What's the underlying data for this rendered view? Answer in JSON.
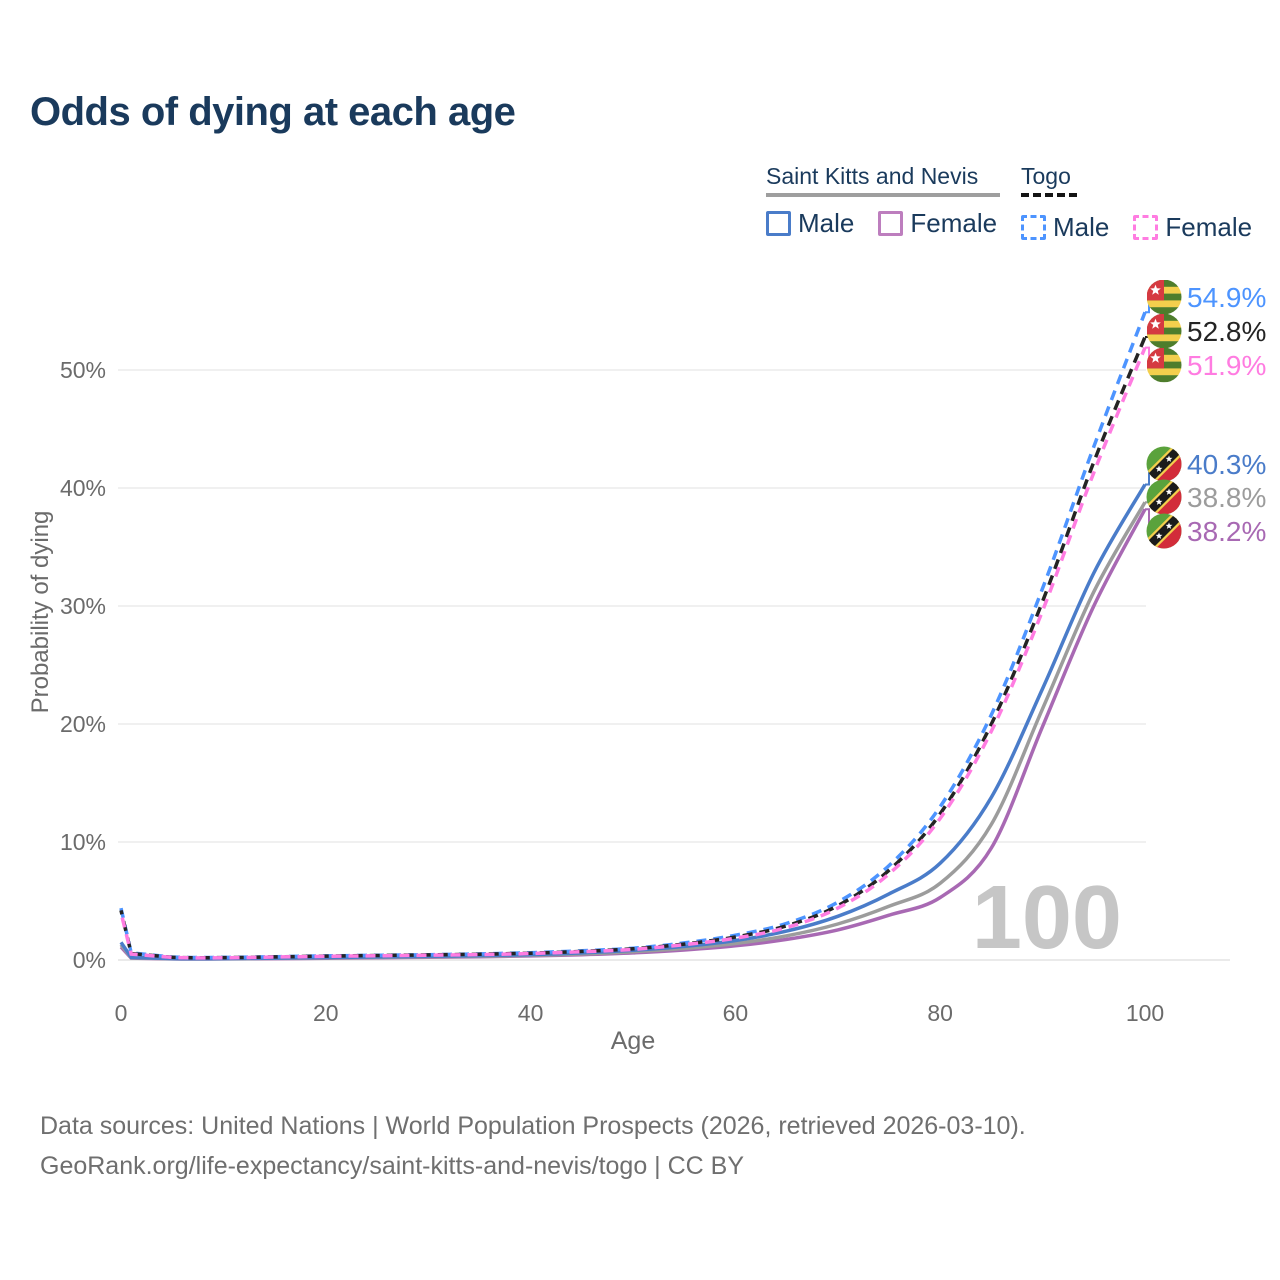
{
  "title": "Odds of dying at each age",
  "legend": {
    "groups": [
      {
        "name": "Saint Kitts and Nevis",
        "underline_style": "solid",
        "underline_color": "#9e9e9e",
        "items": [
          {
            "label": "Male",
            "color": "#4a7cc9",
            "line_style": "solid"
          },
          {
            "label": "Female",
            "color": "#bd7ebe",
            "line_style": "solid"
          }
        ]
      },
      {
        "name": "Togo",
        "underline_style": "dashed",
        "underline_color": "#141414",
        "items": [
          {
            "label": "Male",
            "color": "#4d94ff",
            "line_style": "dashed"
          },
          {
            "label": "Female",
            "color": "#ff7ce1",
            "line_style": "dashed"
          }
        ]
      }
    ]
  },
  "chart_data": {
    "type": "line",
    "title": "Odds of dying at each age",
    "xlabel": "Age",
    "ylabel": "Probability of dying",
    "xlim": [
      0,
      100
    ],
    "ylim": [
      0,
      57
    ],
    "grid": "horizontal",
    "watermark": "100",
    "x_axis": {
      "label": "Age",
      "tick_values": [
        0,
        20,
        40,
        60,
        80,
        100
      ]
    },
    "y_axis": {
      "label": "Probability of dying",
      "tick_values": [
        0,
        10,
        20,
        30,
        40,
        50
      ],
      "tick_labels": [
        "0%",
        "10%",
        "20%",
        "30%",
        "40%",
        "50%"
      ]
    },
    "ages": [
      0,
      1,
      5,
      10,
      15,
      20,
      25,
      30,
      35,
      40,
      45,
      50,
      55,
      60,
      65,
      70,
      75,
      80,
      85,
      90,
      95,
      100
    ],
    "series": [
      {
        "id": "togo-male",
        "country": "Togo",
        "sex": "Male",
        "flag": "togo",
        "color": "#4d94ff",
        "line_style": "dashed",
        "end_value": 54.9,
        "end_label": "54.9%",
        "values": [
          4.4,
          0.6,
          0.25,
          0.22,
          0.28,
          0.35,
          0.4,
          0.45,
          0.52,
          0.62,
          0.78,
          1.0,
          1.45,
          2.1,
          3.1,
          4.9,
          8.0,
          13.0,
          20.8,
          31.5,
          43.5,
          54.9
        ]
      },
      {
        "id": "togo-combined",
        "country": "Togo",
        "sex": "Combined",
        "flag": "togo",
        "color": "#242424",
        "line_style": "dashed",
        "end_value": 52.8,
        "end_label": "52.8%",
        "values": [
          4.2,
          0.55,
          0.23,
          0.2,
          0.26,
          0.33,
          0.38,
          0.43,
          0.49,
          0.58,
          0.73,
          0.95,
          1.35,
          1.95,
          2.9,
          4.6,
          7.6,
          12.4,
          20.0,
          30.4,
          42.2,
          52.8
        ]
      },
      {
        "id": "togo-female",
        "country": "Togo",
        "sex": "Female",
        "flag": "togo",
        "color": "#ff7ce1",
        "line_style": "dashed",
        "end_value": 51.9,
        "end_label": "51.9%",
        "values": [
          4.0,
          0.5,
          0.22,
          0.19,
          0.25,
          0.31,
          0.36,
          0.41,
          0.46,
          0.55,
          0.7,
          0.9,
          1.3,
          1.85,
          2.75,
          4.4,
          7.3,
          12.0,
          19.4,
          29.6,
          41.3,
          51.9
        ]
      },
      {
        "id": "skn-male",
        "country": "Saint Kitts and Nevis",
        "sex": "Male",
        "flag": "skn",
        "color": "#4a7cc9",
        "line_style": "solid",
        "end_value": 40.3,
        "end_label": "40.3%",
        "values": [
          1.5,
          0.22,
          0.12,
          0.12,
          0.16,
          0.21,
          0.26,
          0.31,
          0.37,
          0.46,
          0.6,
          0.82,
          1.15,
          1.65,
          2.45,
          3.7,
          5.6,
          8.2,
          13.8,
          23.0,
          32.8,
          40.3
        ]
      },
      {
        "id": "skn-combined",
        "country": "Saint Kitts and Nevis",
        "sex": "Combined",
        "flag": "skn",
        "color": "#9c9c9c",
        "line_style": "solid",
        "end_value": 38.8,
        "end_label": "38.8%",
        "values": [
          1.3,
          0.19,
          0.1,
          0.1,
          0.14,
          0.18,
          0.22,
          0.27,
          0.32,
          0.4,
          0.52,
          0.7,
          0.98,
          1.4,
          2.05,
          3.05,
          4.55,
          6.5,
          11.5,
          21.3,
          31.2,
          38.8
        ]
      },
      {
        "id": "skn-female",
        "country": "Saint Kitts and Nevis",
        "sex": "Female",
        "flag": "skn",
        "color": "#a869b3",
        "line_style": "solid",
        "end_value": 38.2,
        "end_label": "38.2%",
        "values": [
          1.1,
          0.16,
          0.09,
          0.09,
          0.12,
          0.15,
          0.19,
          0.23,
          0.28,
          0.35,
          0.45,
          0.6,
          0.85,
          1.2,
          1.75,
          2.55,
          3.8,
          5.3,
          9.5,
          19.8,
          30.0,
          38.2
        ]
      }
    ]
  },
  "colors": {
    "title": "#1a3a5c",
    "axis_text": "#6b6b6b",
    "grid": "#ececec",
    "watermark": "#c6c6c6",
    "footer": "#6f6f6f"
  },
  "footer": {
    "line1": "Data sources: United Nations | World Population Prospects (2026, retrieved 2026-03-10).",
    "line2": "GeoRank.org/life-expectancy/saint-kitts-and-nevis/togo | CC BY"
  }
}
